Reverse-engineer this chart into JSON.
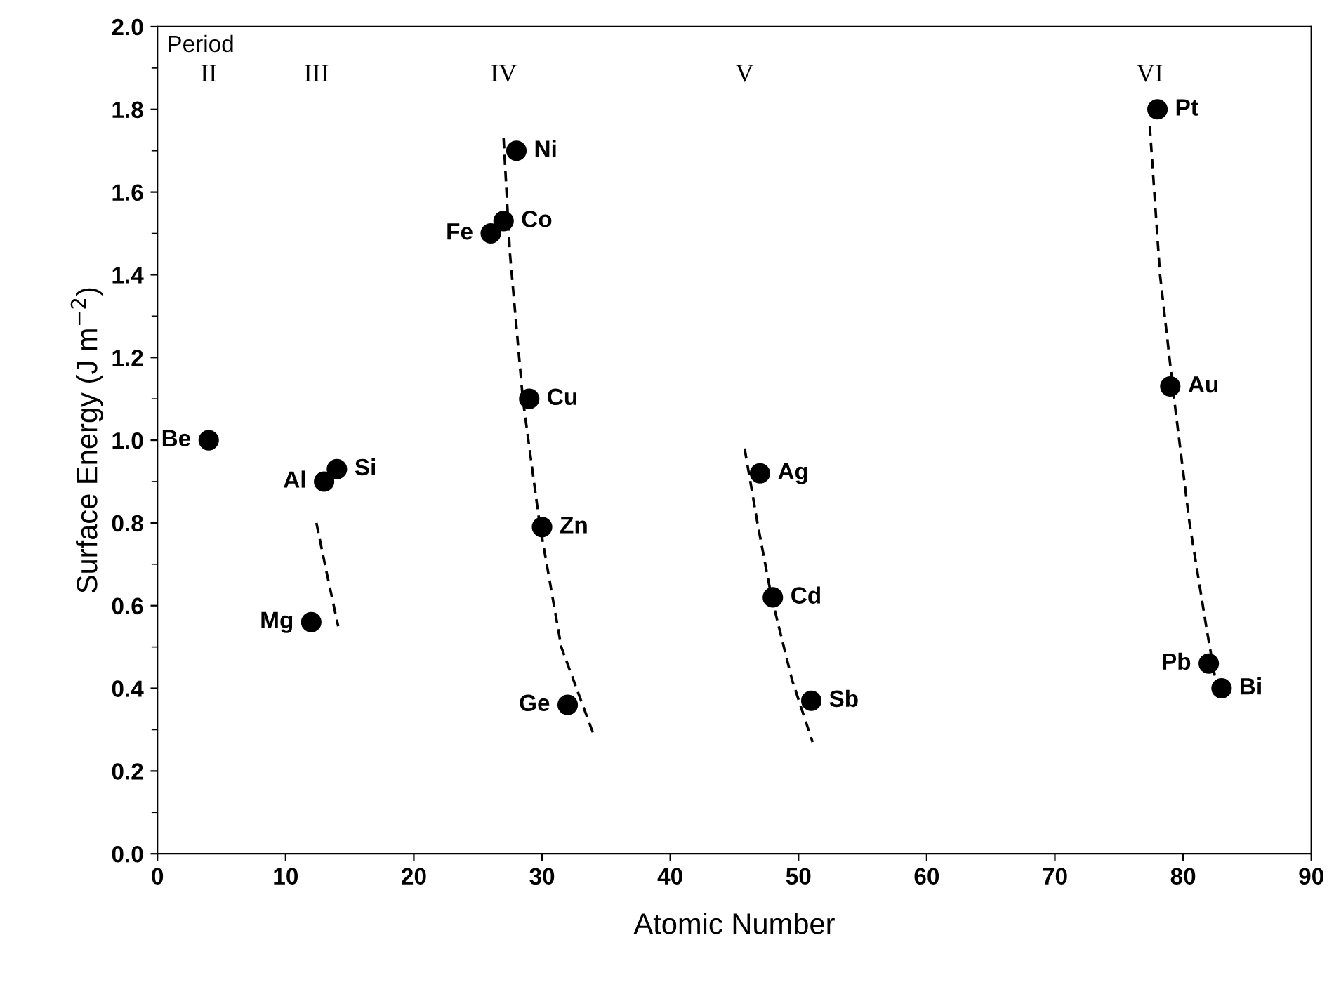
{
  "chart_data": {
    "type": "scatter",
    "xlabel": "Atomic Number",
    "ylabel": "Surface Energy (J m$^{−2}$)",
    "xlim": [
      0,
      90
    ],
    "xticks": [
      0,
      10,
      20,
      30,
      40,
      50,
      60,
      70,
      80,
      90
    ],
    "ylim": [
      0,
      2.0
    ],
    "yticks": [
      {
        "value": 0,
        "label": "0.0"
      },
      {
        "value": 0.2,
        "label": "0.2"
      },
      {
        "value": 0.4,
        "label": "0.4"
      },
      {
        "value": 0.6,
        "label": "0.6"
      },
      {
        "value": 0.8,
        "label": "0.8"
      },
      {
        "value": 1.0,
        "label": "1.0"
      },
      {
        "value": 1.2,
        "label": "1.2"
      },
      {
        "value": 1.4,
        "label": "1.4"
      },
      {
        "value": 1.6,
        "label": "1.6"
      },
      {
        "value": 1.8,
        "label": "1.8"
      },
      {
        "value": 2.0,
        "label": "2.0"
      }
    ],
    "grid": false,
    "legend": false,
    "marker": "circle",
    "series": [
      {
        "color": "#000000",
        "x": [
          4,
          12,
          13,
          14,
          26,
          27,
          28,
          29,
          30,
          32,
          47,
          48,
          51,
          78,
          79,
          82,
          83
        ],
        "values": [
          1.0,
          0.56,
          0.9,
          0.93,
          1.5,
          1.53,
          1.7,
          1.1,
          0.79,
          0.36,
          0.92,
          0.62,
          0.37,
          1.8,
          1.13,
          0.46,
          0.4
        ]
      },
      {
        "type": "line",
        "color": "#000000",
        "line_style": "dashed",
        "marker": "none",
        "x": [
          12.4,
          13.2,
          14.1
        ],
        "values": [
          0.8,
          0.68,
          0.55
        ]
      },
      {
        "type": "line",
        "color": "#000000",
        "line_style": "dashed",
        "marker": "none",
        "x": [
          27,
          27.5,
          28.5,
          29.8,
          31.5,
          34
        ],
        "values": [
          1.73,
          1.45,
          1.1,
          0.8,
          0.5,
          0.29
        ]
      },
      {
        "type": "line",
        "color": "#000000",
        "line_style": "dashed",
        "marker": "none",
        "x": [
          45.8,
          46.8,
          47.9,
          49.5,
          51.1
        ],
        "values": [
          0.98,
          0.8,
          0.62,
          0.42,
          0.27
        ]
      },
      {
        "type": "line",
        "color": "#000000",
        "line_style": "dashed",
        "marker": "none",
        "x": [
          77.4,
          78.2,
          79.3,
          80.5,
          81.8,
          82.7
        ],
        "values": [
          1.76,
          1.4,
          1.1,
          0.8,
          0.55,
          0.39
        ]
      }
    ],
    "annotations": [
      "Period",
      "II",
      "III",
      "IV",
      "V",
      "VI",
      {
        "text": "Be",
        "x": 4,
        "y": 1.0
      },
      {
        "text": "Mg",
        "x": 12,
        "y": 0.56
      },
      {
        "text": "Al",
        "x": 13,
        "y": 0.9
      },
      {
        "text": "Si",
        "x": 14,
        "y": 0.93
      },
      {
        "text": "Fe",
        "x": 26,
        "y": 1.5
      },
      {
        "text": "Co",
        "x": 27,
        "y": 1.53
      },
      {
        "text": "Ni",
        "x": 28,
        "y": 1.7
      },
      {
        "text": "Cu",
        "x": 29,
        "y": 1.1
      },
      {
        "text": "Zn",
        "x": 30,
        "y": 0.79
      },
      {
        "text": "Ge",
        "x": 32,
        "y": 0.36
      },
      {
        "text": "Ag",
        "x": 47,
        "y": 0.92
      },
      {
        "text": "Cd",
        "x": 48,
        "y": 0.62
      },
      {
        "text": "Sb",
        "x": 51,
        "y": 0.37
      },
      {
        "text": "Pt",
        "x": 78,
        "y": 1.8
      },
      {
        "text": "Au",
        "x": 79,
        "y": 1.13
      },
      {
        "text": "Pb",
        "x": 82,
        "y": 0.46
      },
      {
        "text": "Bi",
        "x": 83,
        "y": 0.4
      }
    ]
  }
}
